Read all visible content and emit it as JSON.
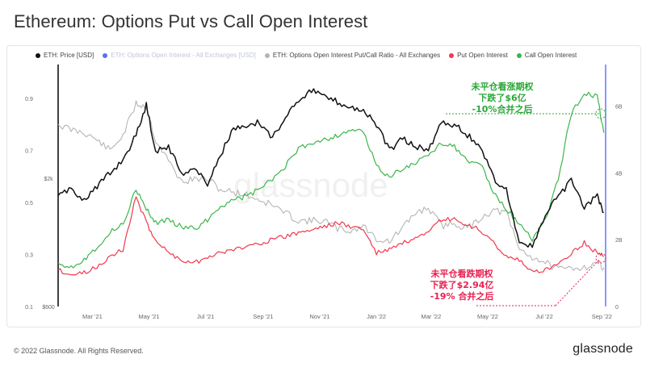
{
  "title": "Ethereum: Options Put vs Call Open Interest",
  "legend": [
    {
      "label": "ETH: Price [USD]",
      "color": "#111111",
      "faded": false
    },
    {
      "label": "ETH: Options Open Interest - All Exchanges [USD]",
      "color": "#5b6ef5",
      "faded": true
    },
    {
      "label": "ETH: Options Open Interest Put/Call Ratio - All Exchanges",
      "color": "#b5b5b5",
      "faded": false
    },
    {
      "label": "Put Open Interest",
      "color": "#f0384f",
      "faded": false
    },
    {
      "label": "Call Open Interest",
      "color": "#3bb54a",
      "faded": false
    }
  ],
  "annotations": {
    "call": [
      "未平仓看涨期权",
      "下跌了$6亿",
      "-10%合并之后"
    ],
    "put": [
      "未平仓看跌期权",
      "下跌了$2.94亿",
      "-19% 合并之后"
    ]
  },
  "watermark": "glassnode",
  "footer": {
    "copyright": "© 2022 Glassnode. All Rights Reserved.",
    "logo": "glassnode"
  },
  "chart_data": {
    "type": "line",
    "x_tick_labels": [
      "Mar '21",
      "May '21",
      "Jul '21",
      "Sep '21",
      "Nov '21",
      "Jan '22",
      "Mar '22",
      "May '22",
      "Jul '22",
      "Sep '22"
    ],
    "y_left_ticks": [
      "0.9",
      "0.7",
      "0.5",
      "0.3",
      "0.1"
    ],
    "y_price_ticks": [
      "$2k",
      "$600"
    ],
    "y_right_ticks": [
      "6B",
      "4B",
      "2B",
      "0"
    ],
    "ratio_range": [
      0.1,
      1.0
    ],
    "oi_range_billion": [
      0,
      7
    ],
    "price_range_usd": [
      600,
      5400
    ],
    "x": [
      "2021-02-06",
      "2021-02-20",
      "2021-03-06",
      "2021-03-20",
      "2021-04-03",
      "2021-04-17",
      "2021-05-01",
      "2021-05-12",
      "2021-05-22",
      "2021-06-05",
      "2021-06-19",
      "2021-07-03",
      "2021-07-17",
      "2021-07-31",
      "2021-08-14",
      "2021-08-28",
      "2021-09-11",
      "2021-09-25",
      "2021-10-09",
      "2021-10-23",
      "2021-11-06",
      "2021-11-20",
      "2021-12-04",
      "2021-12-18",
      "2022-01-01",
      "2022-01-15",
      "2022-01-29",
      "2022-02-12",
      "2022-02-26",
      "2022-03-12",
      "2022-03-26",
      "2022-04-09",
      "2022-04-23",
      "2022-05-07",
      "2022-05-21",
      "2022-06-04",
      "2022-06-18",
      "2022-07-02",
      "2022-07-16",
      "2022-07-30",
      "2022-08-13",
      "2022-08-27",
      "2022-09-10",
      "2022-09-17"
    ],
    "series": [
      {
        "name": "ETH: Price [USD]",
        "axis": "price",
        "color": "#111111",
        "values": [
          1700,
          1800,
          1650,
          1850,
          2100,
          2400,
          3000,
          4000,
          2600,
          2700,
          2100,
          2200,
          1900,
          2500,
          3200,
          3200,
          3400,
          2900,
          3600,
          4200,
          4600,
          4300,
          4100,
          3900,
          3800,
          3300,
          2600,
          2900,
          2700,
          2600,
          3400,
          3300,
          3000,
          2700,
          2000,
          1800,
          1100,
          1050,
          1400,
          1700,
          1950,
          1500,
          1700,
          1450
        ]
      },
      {
        "name": "ETH: Options Open Interest Put/Call Ratio - All Exchanges",
        "axis": "ratio",
        "color": "#b5b5b5",
        "values": [
          0.8,
          0.78,
          0.77,
          0.74,
          0.7,
          0.76,
          0.88,
          0.87,
          0.74,
          0.66,
          0.58,
          0.59,
          0.59,
          0.55,
          0.54,
          0.53,
          0.51,
          0.49,
          0.46,
          0.43,
          0.43,
          0.43,
          0.4,
          0.39,
          0.41,
          0.36,
          0.35,
          0.4,
          0.46,
          0.48,
          0.41,
          0.42,
          0.4,
          0.44,
          0.47,
          0.46,
          0.32,
          0.29,
          0.27,
          0.24,
          0.25,
          0.25,
          0.27,
          0.25
        ]
      },
      {
        "name": "Put Open Interest",
        "axis": "oi",
        "color": "#f0384f",
        "values": [
          1.1,
          0.95,
          1.0,
          1.2,
          1.5,
          1.7,
          3.3,
          2.5,
          2.0,
          1.6,
          1.4,
          1.3,
          1.5,
          1.6,
          1.7,
          1.8,
          1.9,
          2.0,
          2.1,
          2.2,
          2.3,
          2.4,
          2.5,
          2.4,
          2.3,
          1.6,
          1.7,
          1.9,
          2.0,
          2.2,
          2.6,
          2.6,
          2.4,
          2.3,
          1.9,
          1.5,
          1.4,
          1.0,
          1.1,
          1.3,
          1.6,
          1.9,
          1.6,
          1.5
        ]
      },
      {
        "name": "Call Open Interest",
        "axis": "oi",
        "color": "#3bb54a",
        "values": [
          1.3,
          1.2,
          1.4,
          1.8,
          2.2,
          2.5,
          3.5,
          2.9,
          2.5,
          2.6,
          2.4,
          2.3,
          2.6,
          3.0,
          3.2,
          3.3,
          3.5,
          3.8,
          4.2,
          4.7,
          4.9,
          5.0,
          5.1,
          5.3,
          5.2,
          4.2,
          3.9,
          4.1,
          4.3,
          4.5,
          4.9,
          4.8,
          4.3,
          4.3,
          3.4,
          2.9,
          2.5,
          2.0,
          2.6,
          3.8,
          5.8,
          6.4,
          6.3,
          5.2
        ]
      }
    ],
    "xlabel": "",
    "ylabel": "",
    "grid": false,
    "legend_position": "top"
  }
}
